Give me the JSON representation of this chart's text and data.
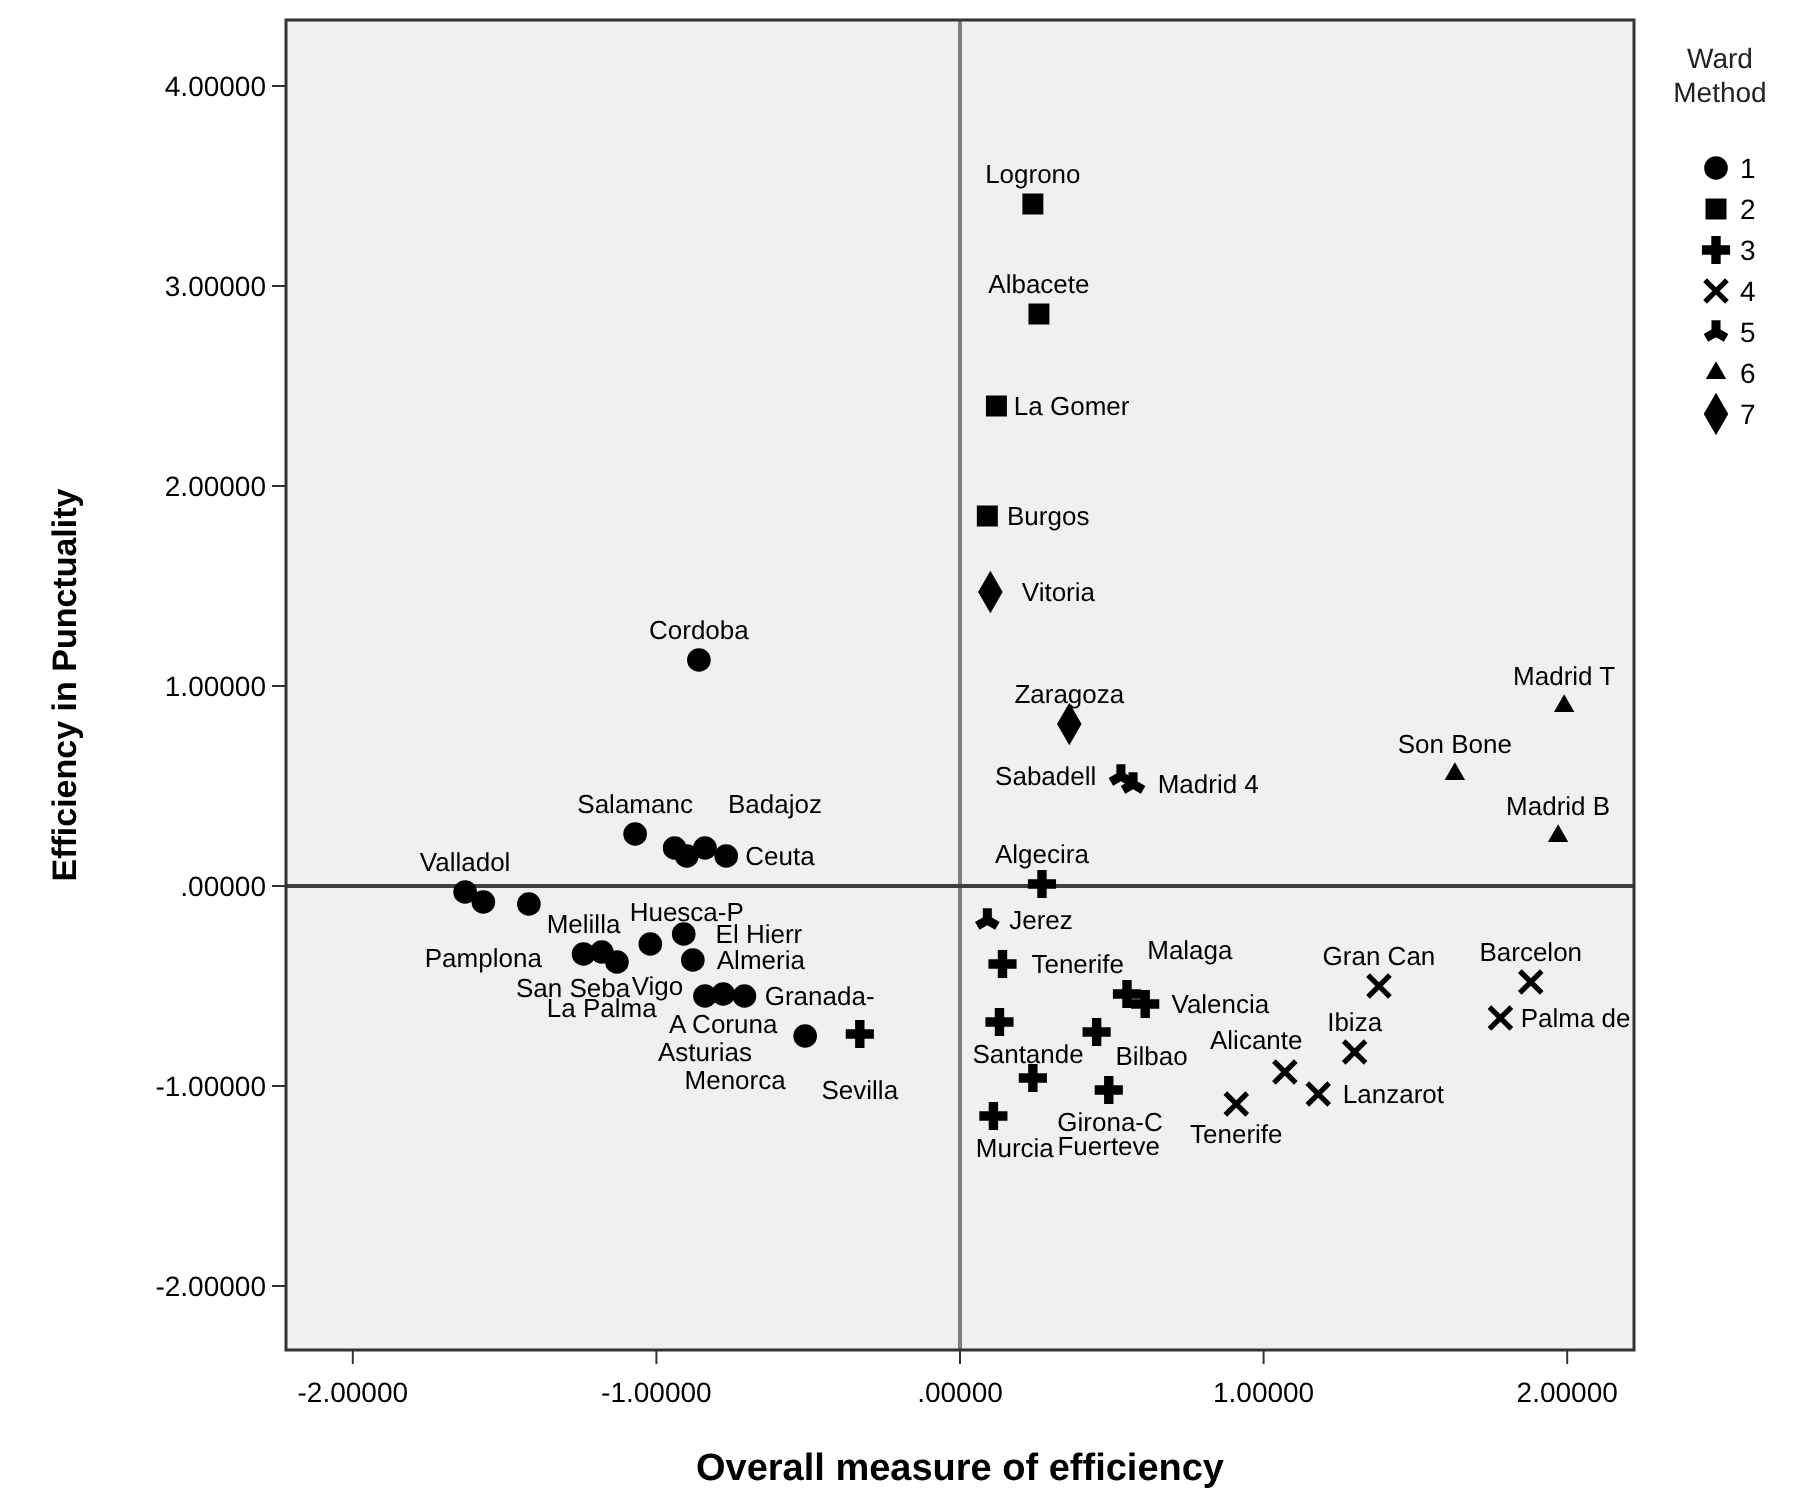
{
  "chart_data": {
    "type": "scatter",
    "xlabel": "Overall measure of efficiency",
    "ylabel": "Efficiency in Punctuality",
    "legend_title": "Ward Method",
    "legend": "top right",
    "grid": false,
    "xlim": [
      -2.22,
      2.22
    ],
    "ylim": [
      -2.32,
      4.33
    ],
    "xticks": [
      {
        "value": -2,
        "label": "-2.00000"
      },
      {
        "value": -1,
        "label": "-1.00000"
      },
      {
        "value": 0,
        "label": ".00000"
      },
      {
        "value": 1,
        "label": "1.00000"
      },
      {
        "value": 2,
        "label": "2.00000"
      }
    ],
    "yticks": [
      {
        "value": -2,
        "label": "-2.00000"
      },
      {
        "value": -1,
        "label": "-1.00000"
      },
      {
        "value": 0,
        "label": ".00000"
      },
      {
        "value": 1,
        "label": "1.00000"
      },
      {
        "value": 2,
        "label": "2.00000"
      },
      {
        "value": 3,
        "label": "3.00000"
      },
      {
        "value": 4,
        "label": "4.00000"
      }
    ],
    "ref_lines": [
      {
        "axis": "x",
        "value": 0,
        "color": "#808080"
      },
      {
        "axis": "y",
        "value": 0,
        "color": "#404040"
      }
    ],
    "series": [
      {
        "name": "1",
        "color": "#000000",
        "marker": "circle",
        "x": [
          -0.86,
          -1.07,
          -0.94,
          -0.9,
          -0.84,
          -0.77,
          -1.63,
          -1.57,
          -1.42,
          -1.24,
          -1.18,
          -1.13,
          -1.02,
          -0.91,
          -0.88,
          -0.84,
          -0.78,
          -0.71,
          -0.51
        ],
        "values": [
          1.13,
          0.26,
          0.19,
          0.15,
          0.19,
          0.15,
          -0.03,
          -0.08,
          -0.09,
          -0.34,
          -0.33,
          -0.38,
          -0.29,
          -0.24,
          -0.37,
          -0.55,
          -0.54,
          -0.55,
          -0.75
        ]
      },
      {
        "name": "2",
        "color": "#000000",
        "marker": "square",
        "x": [
          0.24,
          0.26,
          0.12,
          0.09
        ],
        "values": [
          3.41,
          2.86,
          2.4,
          1.85
        ]
      },
      {
        "name": "3",
        "color": "#000000",
        "marker": "cross",
        "x": [
          0.27,
          0.14,
          0.13,
          -0.33,
          0.45,
          0.55,
          0.61,
          0.24,
          0.49,
          0.11
        ],
        "values": [
          0.01,
          -0.39,
          -0.68,
          -0.74,
          -0.73,
          -0.54,
          -0.59,
          -0.96,
          -1.02,
          -1.15
        ]
      },
      {
        "name": "4",
        "color": "#000000",
        "x": [
          1.38,
          1.88,
          1.78,
          1.3,
          1.07,
          1.18,
          0.91
        ],
        "values": [
          -0.5,
          -0.48,
          -0.66,
          -0.83,
          -0.93,
          -1.04,
          -1.09
        ]
      },
      {
        "name": "5",
        "color": "#000000",
        "x": [
          0.53,
          0.57,
          0.09
        ],
        "values": [
          0.55,
          0.51,
          -0.17
        ]
      },
      {
        "name": "6",
        "color": "#000000",
        "marker": "triangle",
        "x": [
          1.99,
          1.63,
          1.97
        ],
        "values": [
          0.9,
          0.56,
          0.25
        ]
      },
      {
        "name": "7",
        "color": "#000000",
        "marker": "diamond",
        "x": [
          0.1,
          0.36
        ],
        "values": [
          1.47,
          0.81
        ]
      }
    ],
    "annotations": [
      {
        "text": "Logrono",
        "x": 0.24,
        "y": 3.41
      },
      {
        "text": "Albacete",
        "x": 0.26,
        "y": 2.86
      },
      {
        "text": "La Gomer",
        "x": 0.12,
        "y": 2.4
      },
      {
        "text": "Burgos",
        "x": 0.09,
        "y": 1.85
      },
      {
        "text": "Vitoria",
        "x": 0.1,
        "y": 1.47
      },
      {
        "text": "Cordoba",
        "x": -0.86,
        "y": 1.13
      },
      {
        "text": "Zaragoza",
        "x": 0.36,
        "y": 0.81
      },
      {
        "text": "Sabadell",
        "x": 0.53,
        "y": 0.55
      },
      {
        "text": "Madrid 4",
        "x": 0.57,
        "y": 0.51
      },
      {
        "text": "Madrid T",
        "x": 1.99,
        "y": 0.9
      },
      {
        "text": "Son Bone",
        "x": 1.63,
        "y": 0.56
      },
      {
        "text": "Madrid B",
        "x": 1.97,
        "y": 0.25
      },
      {
        "text": "Salamanc",
        "x": -1.07,
        "y": 0.26
      },
      {
        "text": "Badajoz",
        "x": -0.84,
        "y": 0.19
      },
      {
        "text": "Valladol",
        "x": -1.63,
        "y": -0.03
      },
      {
        "text": "Huesca-P",
        "x": -0.9,
        "y": 0.15
      },
      {
        "text": "Algecira",
        "x": 0.27,
        "y": 0.01
      },
      {
        "text": "Ceuta",
        "x": -0.77,
        "y": 0.15
      },
      {
        "text": "Jerez",
        "x": 0.09,
        "y": -0.17
      },
      {
        "text": "Pamplona",
        "x": -1.57,
        "y": -0.08
      },
      {
        "text": "San Seba",
        "x": -1.02,
        "y": -0.29
      },
      {
        "text": "Tenerife",
        "x": 0.14,
        "y": -0.39
      },
      {
        "text": "Melilla",
        "x": -1.24,
        "y": -0.34
      },
      {
        "text": "El Hierr",
        "x": -0.91,
        "y": -0.24
      },
      {
        "text": "Almeria",
        "x": -0.88,
        "y": -0.37
      },
      {
        "text": "Gran Can",
        "x": 1.38,
        "y": -0.5
      },
      {
        "text": "Barcelon",
        "x": 1.88,
        "y": -0.48
      },
      {
        "text": "Malaga",
        "x": 0.55,
        "y": -0.54
      },
      {
        "text": "La Palma",
        "x": -1.18,
        "y": -0.33
      },
      {
        "text": "Vigo",
        "x": -1.13,
        "y": -0.38
      },
      {
        "text": "Santande",
        "x": 0.13,
        "y": -0.68
      },
      {
        "text": "Bilbao",
        "x": 0.45,
        "y": -0.73
      },
      {
        "text": "Granada-",
        "x": -0.71,
        "y": -0.55
      },
      {
        "text": "Asturias",
        "x": -0.84,
        "y": -0.55
      },
      {
        "text": "Sevilla",
        "x": -0.33,
        "y": -0.74
      },
      {
        "text": "Ibiza",
        "x": 1.3,
        "y": -0.83
      },
      {
        "text": "Valencia",
        "x": 0.61,
        "y": -0.59
      },
      {
        "text": "Palma de",
        "x": 1.78,
        "y": -0.66
      },
      {
        "text": "A Coruna",
        "x": -0.78,
        "y": -0.54
      },
      {
        "text": "Girona-C",
        "x": 0.24,
        "y": -0.96
      },
      {
        "text": "Alicante",
        "x": 1.07,
        "y": -0.93
      },
      {
        "text": "Lanzarot",
        "x": 1.18,
        "y": -1.04
      },
      {
        "text": "Menorca",
        "x": -0.51,
        "y": -0.75
      },
      {
        "text": "Fuerteve",
        "x": 0.49,
        "y": -1.02
      },
      {
        "text": "Tenerife",
        "x": 0.91,
        "y": -1.09
      },
      {
        "text": "Murcia",
        "x": 0.11,
        "y": -1.15
      }
    ]
  }
}
